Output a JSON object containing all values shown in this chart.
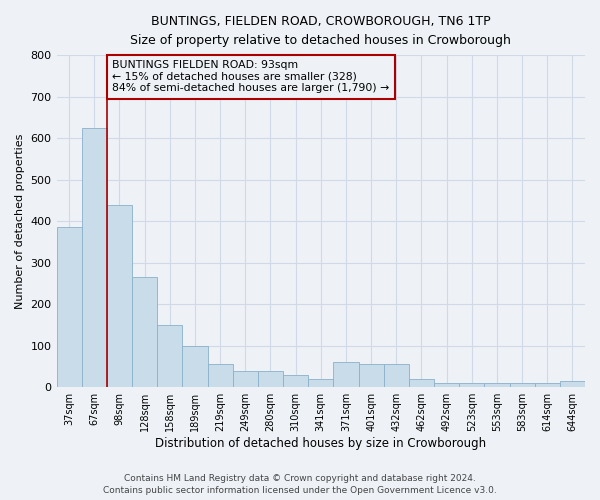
{
  "title": "BUNTINGS, FIELDEN ROAD, CROWBOROUGH, TN6 1TP",
  "subtitle": "Size of property relative to detached houses in Crowborough",
  "xlabel": "Distribution of detached houses by size in Crowborough",
  "ylabel": "Number of detached properties",
  "footer_line1": "Contains HM Land Registry data © Crown copyright and database right 2024.",
  "footer_line2": "Contains public sector information licensed under the Open Government Licence v3.0.",
  "annotation_line1": "BUNTINGS FIELDEN ROAD: 93sqm",
  "annotation_line2": "← 15% of detached houses are smaller (328)",
  "annotation_line3": "84% of semi-detached houses are larger (1,790) →",
  "bar_color": "#c9dcea",
  "bar_edge_color": "#8ab0c8",
  "ref_line_color": "#aa0000",
  "annotation_border_color": "#aa0000",
  "categories": [
    "37sqm",
    "67sqm",
    "98sqm",
    "128sqm",
    "158sqm",
    "189sqm",
    "219sqm",
    "249sqm",
    "280sqm",
    "310sqm",
    "341sqm",
    "371sqm",
    "401sqm",
    "432sqm",
    "462sqm",
    "492sqm",
    "523sqm",
    "553sqm",
    "583sqm",
    "614sqm",
    "644sqm"
  ],
  "values": [
    385,
    625,
    440,
    265,
    150,
    100,
    55,
    40,
    40,
    30,
    20,
    60,
    55,
    55,
    20,
    10,
    10,
    10,
    10,
    10,
    15
  ],
  "ref_bar_index": 2,
  "ylim": [
    0,
    800
  ],
  "yticks": [
    0,
    100,
    200,
    300,
    400,
    500,
    600,
    700,
    800
  ],
  "bg_color": "#eef2f7",
  "grid_color": "#d0dae6"
}
